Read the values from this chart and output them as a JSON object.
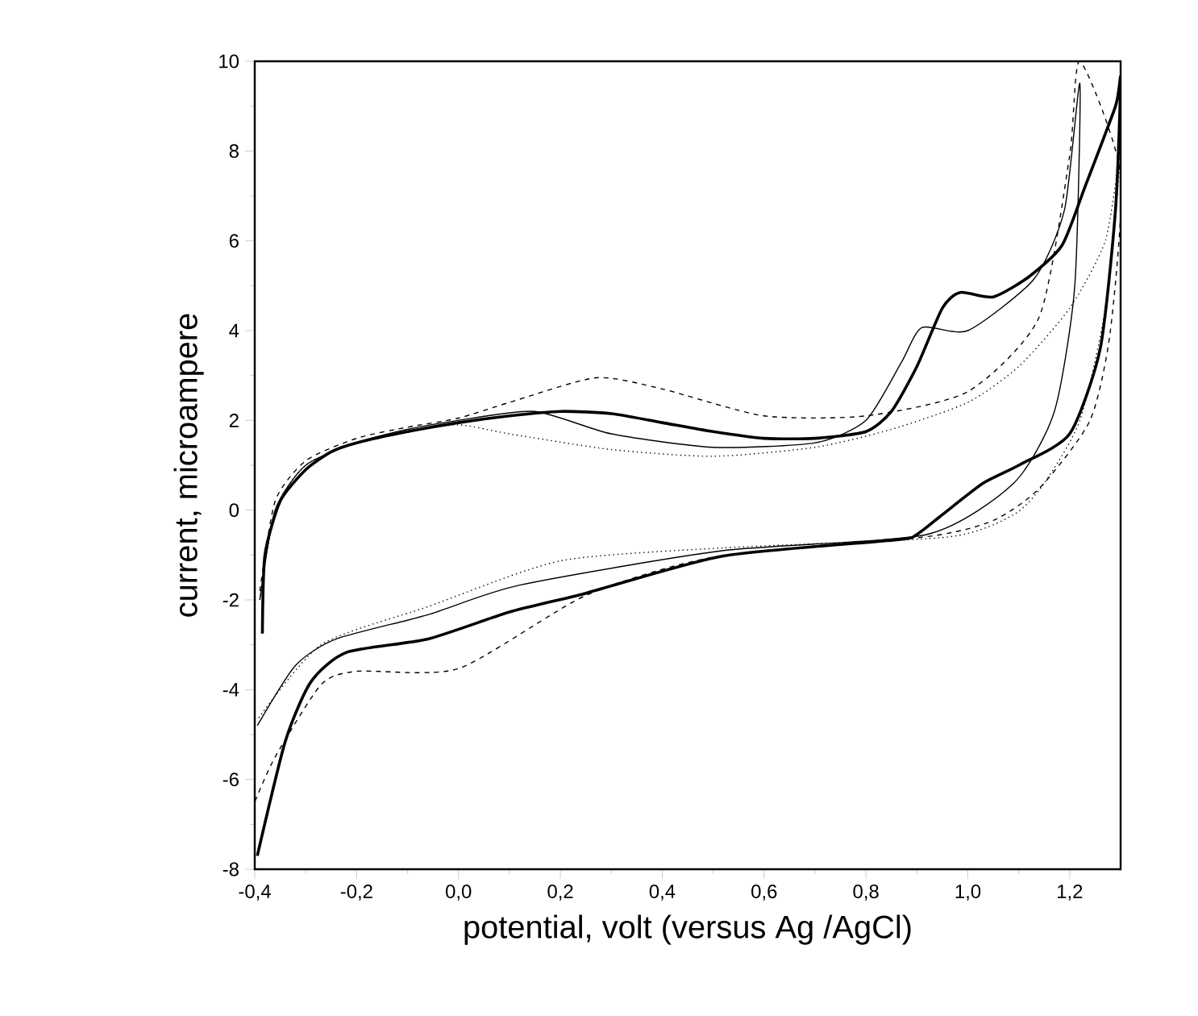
{
  "chart_data": {
    "type": "line",
    "xlabel": "potential, volt (versus Ag /AgCl)",
    "ylabel": "current, microampere",
    "xlim": [
      -0.4,
      1.3
    ],
    "ylim": [
      -8,
      10
    ],
    "xticks": [
      {
        "value": -0.4,
        "label": "-0,4"
      },
      {
        "value": -0.2,
        "label": "-0,2"
      },
      {
        "value": 0.0,
        "label": "0,0"
      },
      {
        "value": 0.2,
        "label": "0,2"
      },
      {
        "value": 0.4,
        "label": "0,4"
      },
      {
        "value": 0.6,
        "label": "0,6"
      },
      {
        "value": 0.8,
        "label": "0,8"
      },
      {
        "value": 1.0,
        "label": "1,0"
      },
      {
        "value": 1.2,
        "label": "1,2"
      }
    ],
    "yticks": [
      -8,
      -6,
      -4,
      -2,
      0,
      2,
      4,
      6,
      8,
      10
    ],
    "marker": "none",
    "series": [
      {
        "color": "#000000",
        "line_style": "solid",
        "x": [
          -0.385,
          -0.38,
          -0.35,
          -0.3,
          -0.25,
          -0.2,
          -0.1,
          0.0,
          0.1,
          0.2,
          0.3,
          0.4,
          0.5,
          0.6,
          0.7,
          0.8,
          0.85,
          0.9,
          0.95,
          0.985,
          1.05,
          1.12,
          1.185,
          1.23,
          1.29,
          1.3,
          1.29,
          1.26,
          1.2,
          1.1,
          1.03,
          0.95,
          0.9,
          0.86,
          0.52,
          0.25,
          0.1,
          -0.06,
          -0.22,
          -0.29,
          -0.34,
          -0.395
        ],
        "values": [
          -2.75,
          -1.0,
          0.2,
          0.9,
          1.3,
          1.5,
          1.75,
          1.95,
          2.1,
          2.2,
          2.15,
          1.95,
          1.75,
          1.6,
          1.6,
          1.75,
          2.2,
          3.2,
          4.5,
          4.85,
          4.75,
          5.2,
          5.9,
          7.2,
          9.0,
          9.6,
          6.7,
          3.6,
          1.7,
          1.0,
          0.6,
          -0.1,
          -0.54,
          -0.66,
          -1.02,
          -1.85,
          -2.27,
          -2.87,
          -3.17,
          -3.83,
          -5.15,
          -7.7
        ]
      },
      {
        "color": "#000000",
        "line_style": "solid",
        "x": [
          -0.39,
          -0.36,
          -0.3,
          -0.2,
          -0.1,
          0.0,
          0.15,
          0.3,
          0.5,
          0.7,
          0.8,
          0.87,
          0.91,
          1.0,
          1.13,
          1.19,
          1.22,
          1.21,
          1.17,
          1.09,
          0.92,
          0.52,
          0.12,
          -0.06,
          -0.24,
          -0.32,
          -0.395
        ],
        "values": [
          -2.0,
          0.0,
          1.0,
          1.5,
          1.8,
          2.0,
          2.2,
          1.7,
          1.4,
          1.5,
          2.0,
          3.3,
          4.07,
          4.0,
          5.15,
          6.7,
          9.5,
          5.0,
          2.2,
          0.6,
          -0.54,
          -0.9,
          -1.67,
          -2.33,
          -2.87,
          -3.46,
          -4.8
        ]
      },
      {
        "color": "#000000",
        "line_style": "dashed",
        "x": [
          -0.39,
          -0.36,
          -0.3,
          -0.2,
          -0.1,
          0.0,
          0.1,
          0.27,
          0.4,
          0.6,
          0.8,
          1.0,
          1.14,
          1.2,
          1.22,
          1.3,
          1.28,
          1.24,
          1.14,
          1.05,
          0.92,
          0.5,
          0.25,
          0.0,
          -0.2,
          -0.27,
          -0.36,
          -0.4
        ],
        "values": [
          -1.8,
          0.2,
          1.1,
          1.6,
          1.85,
          2.05,
          2.4,
          2.95,
          2.7,
          2.1,
          2.1,
          2.64,
          4.3,
          7.9,
          10.0,
          7.5,
          4.0,
          2.0,
          0.48,
          -0.23,
          -0.59,
          -1.05,
          -1.9,
          -3.53,
          -3.59,
          -3.89,
          -5.5,
          -6.5
        ]
      },
      {
        "color": "#000000",
        "line_style": "dotted",
        "x": [
          -0.39,
          -0.36,
          -0.3,
          -0.2,
          -0.1,
          0.0,
          0.1,
          0.3,
          0.5,
          0.7,
          0.85,
          1.0,
          1.1,
          1.2,
          1.27,
          1.3,
          1.27,
          1.22,
          1.15,
          1.09,
          0.96,
          0.52,
          0.2,
          -0.06,
          -0.27,
          -0.395
        ],
        "values": [
          -2.0,
          0.0,
          1.0,
          1.5,
          1.75,
          1.9,
          1.7,
          1.35,
          1.2,
          1.4,
          1.8,
          2.4,
          3.2,
          4.5,
          6.0,
          8.0,
          4.5,
          2.0,
          0.6,
          -0.1,
          -0.6,
          -0.84,
          -1.13,
          -2.15,
          -3.0,
          -4.67
        ]
      }
    ]
  }
}
